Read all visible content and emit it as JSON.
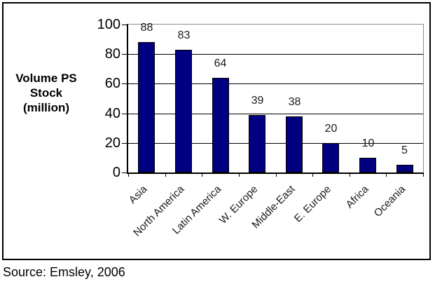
{
  "chart_data": {
    "type": "bar",
    "categories": [
      "Asia",
      "North America",
      "Latin America",
      "W. Europe",
      "Middle-East",
      "E. Europe",
      "Africa",
      "Oceania"
    ],
    "values": [
      88,
      83,
      64,
      39,
      38,
      20,
      10,
      5
    ],
    "title": "",
    "xlabel": "",
    "ylabel": "Volume PS Stock (million)",
    "ylabel_lines": [
      "Volume PS",
      "Stock",
      "(million)"
    ],
    "ylim": [
      0,
      100
    ],
    "yticks": [
      0,
      20,
      40,
      60,
      80,
      100
    ],
    "grid": true,
    "legend": false,
    "data_labels": true,
    "bar_color": "#000080",
    "bar_border_color": "#000000"
  },
  "source": "Source: Emsley, 2006"
}
